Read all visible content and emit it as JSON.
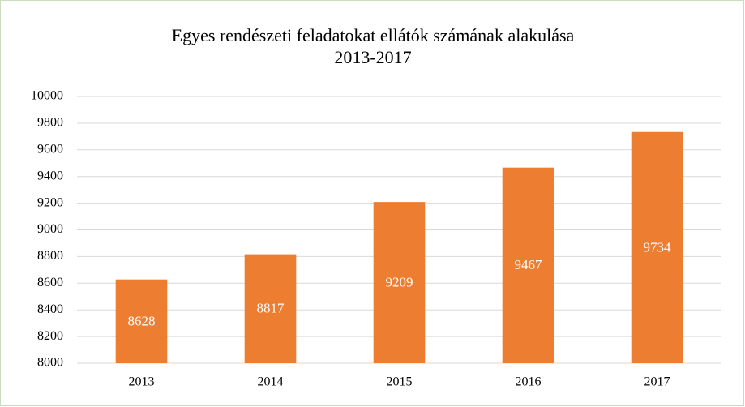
{
  "chart_data": {
    "type": "bar",
    "title": "Egyes rendészeti feladatokat ellátók számának alakulása",
    "subtitle": "2013-2017",
    "categories": [
      "2013",
      "2014",
      "2015",
      "2016",
      "2017"
    ],
    "values": [
      8628,
      8817,
      9209,
      9467,
      9734
    ],
    "color": "#ed7d31",
    "ylim": [
      8000,
      10000
    ],
    "yticks": [
      8000,
      8200,
      8400,
      8600,
      8800,
      9000,
      9200,
      9400,
      9600,
      9800,
      10000
    ],
    "grid": true
  }
}
